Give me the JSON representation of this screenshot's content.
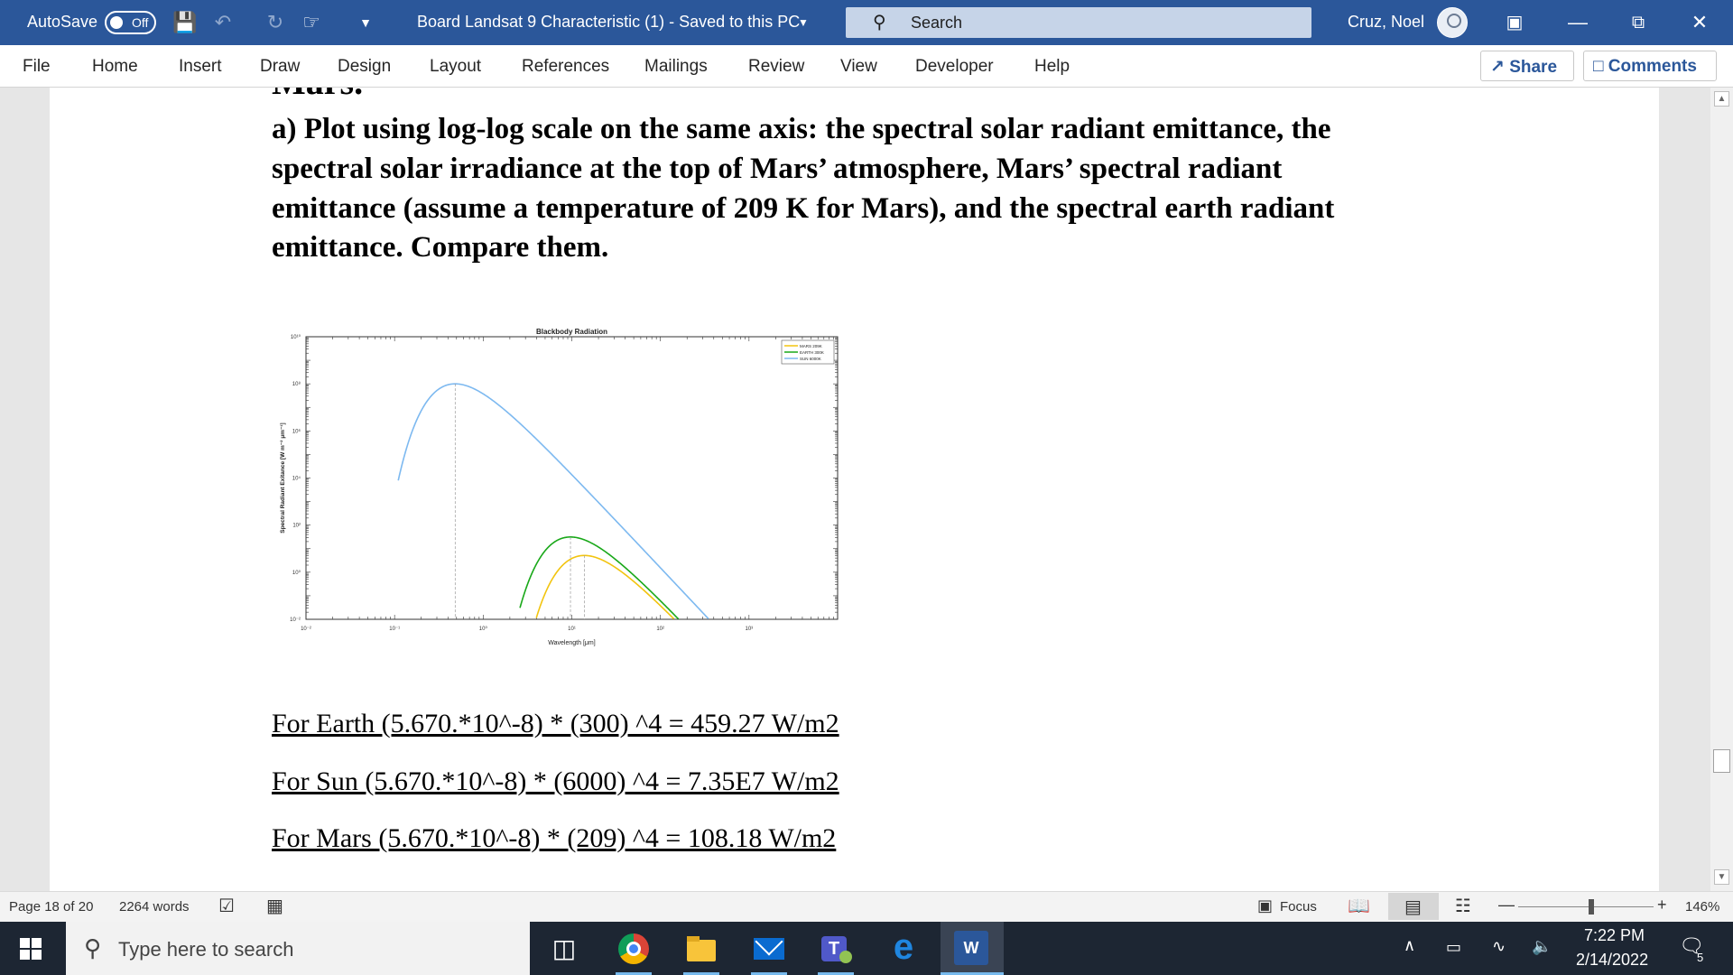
{
  "titlebar": {
    "autosave_label": "AutoSave",
    "autosave_state": "Off",
    "doc_title": "Board Landsat 9 Characteristic (1)  -  Saved to this PC",
    "search_placeholder": "Search",
    "user_name": "Cruz, Noel"
  },
  "ribbon": {
    "tabs": [
      "File",
      "Home",
      "Insert",
      "Draw",
      "Design",
      "Layout",
      "References",
      "Mailings",
      "Review",
      "View",
      "Developer",
      "Help"
    ],
    "share_label": "Share",
    "comments_label": "Comments"
  },
  "document": {
    "cut_heading": "Mars.",
    "question_lines": [
      "a) Plot using log-log scale on the same axis: the spectral solar radiant emittance, the",
      "spectral solar irradiance at the top of Mars’ atmosphere, Mars’ spectral radiant",
      "emittance (assume a temperature of 209 K for Mars), and the spectral earth radiant",
      "emittance. Compare them."
    ],
    "equations": [
      "For Earth (5.670.*10^-8) * (300) ^4 = 459.27 W/m2",
      "For Sun (5.670.*10^-8) * (6000) ^4 = 7.35E7 W/m2",
      "For Mars (5.670.*10^-8) * (209) ^4 = 108.18 W/m2"
    ]
  },
  "chart_data": {
    "type": "line",
    "title": "Blackbody Radiation",
    "xlabel": "Wavelength [μm]",
    "ylabel": "Spectral Radiant Exitance [W m⁻² μm⁻¹]",
    "xscale": "log",
    "yscale": "log",
    "xlim": [
      0.01,
      10000
    ],
    "ylim": [
      0.01,
      10000000000
    ],
    "xticks": [
      "10⁻²",
      "10⁻¹",
      "10⁰",
      "10¹",
      "10²",
      "10³"
    ],
    "yticks": [
      "10⁻²",
      "10⁰",
      "10²",
      "10⁴",
      "10⁶",
      "10⁸",
      "10¹⁰"
    ],
    "legend_position": "top-right",
    "grid": false,
    "series": [
      {
        "name": "MARS 209K",
        "color": "#f2c40f",
        "temperature": 209,
        "x_range": [
          3.5,
          420
        ],
        "peak_wavelength": 13.9
      },
      {
        "name": "EARTH 300K",
        "color": "#19a819",
        "temperature": 300,
        "x_range": [
          2.6,
          420
        ],
        "peak_wavelength": 9.66
      },
      {
        "name": "SUN 6000K",
        "color": "#7db9f0",
        "temperature": 6000,
        "x_range": [
          0.11,
          800
        ],
        "peak_wavelength": 0.483
      }
    ]
  },
  "statusbar": {
    "page_info": "Page 18 of 20",
    "word_count": "2264 words",
    "focus_label": "Focus",
    "zoom": "146%"
  },
  "taskbar": {
    "search_placeholder": "Type here to search",
    "time": "7:22 PM",
    "date": "2/14/2022",
    "notification_count": "5"
  }
}
